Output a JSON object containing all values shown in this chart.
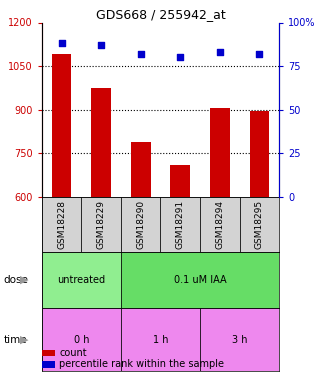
{
  "title": "GDS668 / 255942_at",
  "samples": [
    "GSM18228",
    "GSM18229",
    "GSM18290",
    "GSM18291",
    "GSM18294",
    "GSM18295"
  ],
  "bar_values": [
    1090,
    975,
    790,
    710,
    905,
    895
  ],
  "dot_values": [
    88,
    87,
    82,
    80,
    83,
    82
  ],
  "bar_color": "#cc0000",
  "dot_color": "#0000cc",
  "bar_bottom": 600,
  "ylim_left": [
    600,
    1200
  ],
  "ylim_right": [
    0,
    100
  ],
  "yticks_left": [
    600,
    750,
    900,
    1050,
    1200
  ],
  "yticks_right": [
    0,
    25,
    50,
    75,
    100
  ],
  "ytick_labels_right": [
    "0",
    "25",
    "50",
    "75",
    "100%"
  ],
  "gridlines": [
    750,
    900,
    1050
  ],
  "dose_labels": [
    {
      "text": "untreated",
      "start": 0,
      "end": 2,
      "color": "#90ee90"
    },
    {
      "text": "0.1 uM IAA",
      "start": 2,
      "end": 6,
      "color": "#66dd66"
    }
  ],
  "time_labels": [
    {
      "text": "0 h",
      "start": 0,
      "end": 2,
      "color": "#ee88ee"
    },
    {
      "text": "1 h",
      "start": 2,
      "end": 4,
      "color": "#ee88ee"
    },
    {
      "text": "3 h",
      "start": 4,
      "end": 6,
      "color": "#ee88ee"
    }
  ],
  "xlabel_dose": "dose",
  "xlabel_time": "time",
  "legend_bar_label": "count",
  "legend_dot_label": "percentile rank within the sample",
  "sample_bg_color": "#d3d3d3",
  "arrow_color": "#999999",
  "fig_width": 3.21,
  "fig_height": 3.75,
  "dpi": 100
}
